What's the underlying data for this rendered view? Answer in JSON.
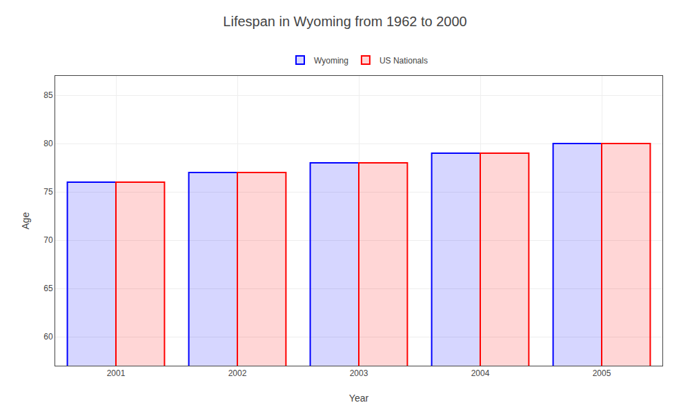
{
  "chart_data": {
    "type": "bar",
    "title": "Lifespan in Wyoming from 1962 to 2000",
    "xlabel": "Year",
    "ylabel": "Age",
    "categories": [
      "2001",
      "2002",
      "2003",
      "2004",
      "2005"
    ],
    "series": [
      {
        "name": "Wyoming",
        "color": "#0000ff",
        "values": [
          76,
          77,
          78,
          79,
          80
        ]
      },
      {
        "name": "US Nationals",
        "color": "#ff0000",
        "values": [
          76,
          77,
          78,
          79,
          80
        ]
      }
    ],
    "ylim": [
      57,
      87
    ],
    "yticks": [
      60,
      65,
      70,
      75,
      80,
      85
    ],
    "grid": true,
    "legend": "top"
  }
}
